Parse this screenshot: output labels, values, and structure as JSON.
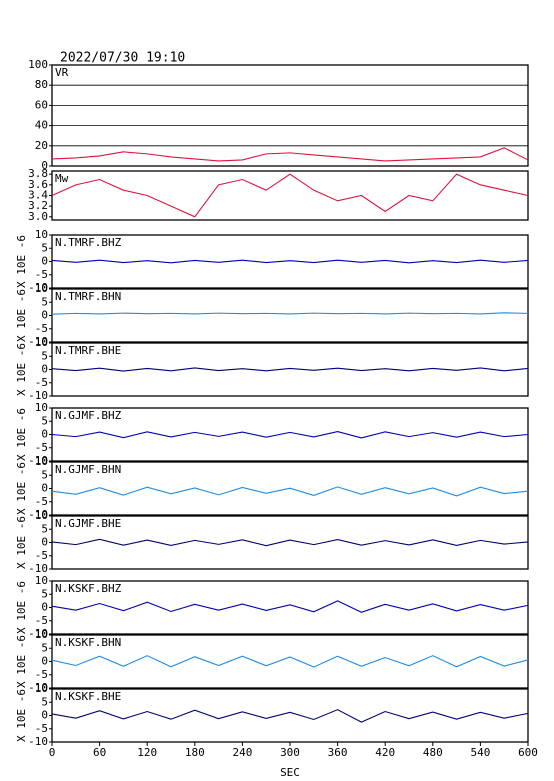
{
  "title": "2022/07/30 19:10",
  "chart_data": [
    {
      "type": "line",
      "label": "VR",
      "ylim": [
        0,
        100
      ],
      "yticks": [
        0,
        20,
        40,
        60,
        80,
        100
      ],
      "grid": true,
      "xlim": [
        0,
        600
      ],
      "x": [
        0,
        30,
        60,
        90,
        120,
        150,
        180,
        210,
        240,
        270,
        300,
        330,
        360,
        390,
        420,
        450,
        480,
        510,
        540,
        570,
        600
      ],
      "series": [
        {
          "color": "#dc143c",
          "values": [
            7,
            8,
            10,
            14,
            12,
            9,
            7,
            5,
            6,
            12,
            13,
            11,
            9,
            7,
            5,
            6,
            7,
            8,
            9,
            18,
            6
          ]
        }
      ]
    },
    {
      "type": "line",
      "label": "Mw",
      "ylim": [
        2.94,
        3.86
      ],
      "yticks": [
        {
          "value": 3,
          "label": "3.0"
        },
        3.2,
        3.4,
        3.6,
        3.8
      ],
      "grid": false,
      "xlim": [
        0,
        600
      ],
      "x": [
        0,
        30,
        60,
        90,
        120,
        150,
        180,
        210,
        240,
        270,
        300,
        330,
        360,
        390,
        420,
        450,
        480,
        510,
        540,
        570,
        600
      ],
      "series": [
        {
          "color": "#dc143c",
          "values": [
            3.4,
            3.6,
            3.7,
            3.5,
            3.4,
            3.2,
            3.0,
            3.6,
            3.7,
            3.5,
            3.8,
            3.5,
            3.3,
            3.4,
            3.1,
            3.4,
            3.3,
            3.8,
            3.6,
            3.5,
            3.4
          ]
        }
      ]
    },
    {
      "type": "line",
      "label": "N.TMRF.BHZ",
      "y_label": "X 10E -6",
      "ylim": [
        -10,
        10
      ],
      "yticks": [
        -10,
        -5,
        0,
        5,
        10
      ],
      "xlim": [
        0,
        600
      ],
      "x": [
        0,
        30,
        60,
        90,
        120,
        150,
        180,
        210,
        240,
        270,
        300,
        330,
        360,
        390,
        420,
        450,
        480,
        510,
        540,
        570,
        600
      ],
      "series": [
        {
          "color": "#0000b0",
          "values": [
            0.4,
            -0.3,
            0.5,
            -0.4,
            0.3,
            -0.5,
            0.4,
            -0.3,
            0.5,
            -0.4,
            0.3,
            -0.4,
            0.5,
            -0.3,
            0.4,
            -0.5,
            0.3,
            -0.4,
            0.5,
            -0.3,
            0.4
          ]
        }
      ]
    },
    {
      "type": "line",
      "label": "N.TMRF.BHN",
      "y_label": "X 10E -6",
      "ylim": [
        -10,
        10
      ],
      "yticks": [
        -10,
        -5,
        0,
        5,
        10
      ],
      "xlim": [
        0,
        600
      ],
      "x": [
        0,
        30,
        60,
        90,
        120,
        150,
        180,
        210,
        240,
        270,
        300,
        330,
        360,
        390,
        420,
        450,
        480,
        510,
        540,
        570,
        600
      ],
      "series": [
        {
          "color": "#1e8ce0",
          "values": [
            0.5,
            0.8,
            0.6,
            0.9,
            0.7,
            0.8,
            0.6,
            0.9,
            0.7,
            0.8,
            0.6,
            0.9,
            0.7,
            0.8,
            0.6,
            0.9,
            0.7,
            0.8,
            0.6,
            1.0,
            0.8
          ]
        }
      ]
    },
    {
      "type": "line",
      "label": "N.TMRF.BHE",
      "y_label": "X 10E -6",
      "ylim": [
        -10,
        10
      ],
      "yticks": [
        -10,
        -5,
        0,
        5,
        10
      ],
      "xlim": [
        0,
        600
      ],
      "x": [
        0,
        30,
        60,
        90,
        120,
        150,
        180,
        210,
        240,
        270,
        300,
        330,
        360,
        390,
        420,
        450,
        480,
        510,
        540,
        570,
        600
      ],
      "series": [
        {
          "color": "#000070",
          "values": [
            0.3,
            -0.4,
            0.5,
            -0.6,
            0.4,
            -0.5,
            0.6,
            -0.4,
            0.3,
            -0.5,
            0.4,
            -0.3,
            0.5,
            -0.4,
            0.3,
            -0.5,
            0.4,
            -0.3,
            0.6,
            -0.5,
            0.4
          ]
        }
      ]
    },
    {
      "type": "line",
      "label": "N.GJMF.BHZ",
      "y_label": "X 10E -6",
      "ylim": [
        -10,
        10
      ],
      "yticks": [
        -10,
        -5,
        0,
        5,
        10
      ],
      "xlim": [
        0,
        600
      ],
      "x": [
        0,
        30,
        60,
        90,
        120,
        150,
        180,
        210,
        240,
        270,
        300,
        330,
        360,
        390,
        420,
        450,
        480,
        510,
        540,
        570,
        600
      ],
      "series": [
        {
          "color": "#0000b0",
          "values": [
            0,
            -0.8,
            0.9,
            -1.2,
            1.0,
            -0.9,
            0.8,
            -0.7,
            0.9,
            -1.0,
            0.8,
            -0.9,
            1.1,
            -1.3,
            1.0,
            -0.8,
            0.7,
            -1.0,
            0.9,
            -0.8,
            0
          ]
        }
      ]
    },
    {
      "type": "line",
      "label": "N.GJMF.BHN",
      "y_label": "X 10E -6",
      "ylim": [
        -10,
        10
      ],
      "yticks": [
        -10,
        -5,
        0,
        5,
        10
      ],
      "xlim": [
        0,
        600
      ],
      "x": [
        0,
        30,
        60,
        90,
        120,
        150,
        180,
        210,
        240,
        270,
        300,
        330,
        360,
        390,
        420,
        450,
        480,
        510,
        540,
        570,
        600
      ],
      "series": [
        {
          "color": "#1e8ce0",
          "values": [
            -1,
            -2.2,
            0.3,
            -2.5,
            0.5,
            -2.0,
            0.2,
            -2.4,
            0.4,
            -1.8,
            0.1,
            -2.6,
            0.6,
            -2.2,
            0.3,
            -2.0,
            0.2,
            -2.8,
            0.5,
            -1.9,
            -1
          ]
        }
      ]
    },
    {
      "type": "line",
      "label": "N.GJMF.BHE",
      "y_label": "X 10E -6",
      "ylim": [
        -10,
        10
      ],
      "yticks": [
        -10,
        -5,
        0,
        5,
        10
      ],
      "xlim": [
        0,
        600
      ],
      "x": [
        0,
        30,
        60,
        90,
        120,
        150,
        180,
        210,
        240,
        270,
        300,
        330,
        360,
        390,
        420,
        450,
        480,
        510,
        540,
        570,
        600
      ],
      "series": [
        {
          "color": "#000070",
          "values": [
            0.2,
            -0.8,
            1.2,
            -1.0,
            0.9,
            -1.1,
            0.8,
            -0.7,
            1.0,
            -1.2,
            0.9,
            -0.8,
            1.1,
            -1.0,
            0.7,
            -0.9,
            1.0,
            -1.1,
            0.8,
            -0.6,
            0.2
          ]
        }
      ]
    },
    {
      "type": "line",
      "label": "N.KSKF.BHZ",
      "y_label": "X 10E -6",
      "ylim": [
        -10,
        10
      ],
      "yticks": [
        -10,
        -5,
        0,
        5,
        10
      ],
      "xlim": [
        0,
        600
      ],
      "x": [
        0,
        30,
        60,
        90,
        120,
        150,
        180,
        210,
        240,
        270,
        300,
        330,
        360,
        390,
        420,
        450,
        480,
        510,
        540,
        570,
        600
      ],
      "series": [
        {
          "color": "#0000b0",
          "values": [
            0.5,
            -1.0,
            1.5,
            -1.2,
            2.0,
            -1.5,
            1.2,
            -1.0,
            1.3,
            -1.1,
            1.0,
            -1.6,
            2.5,
            -1.8,
            1.2,
            -1.0,
            1.4,
            -1.3,
            1.1,
            -1.0,
            0.8
          ]
        }
      ]
    },
    {
      "type": "line",
      "label": "N.KSKF.BHN",
      "y_label": "X 10E -6",
      "ylim": [
        -10,
        10
      ],
      "yticks": [
        -10,
        -5,
        0,
        5,
        10
      ],
      "xlim": [
        0,
        600
      ],
      "x": [
        0,
        30,
        60,
        90,
        120,
        150,
        180,
        210,
        240,
        270,
        300,
        330,
        360,
        390,
        420,
        450,
        480,
        510,
        540,
        570,
        600
      ],
      "series": [
        {
          "color": "#1e8ce0",
          "values": [
            0.5,
            -1.5,
            2.0,
            -1.8,
            2.2,
            -2.0,
            1.8,
            -1.5,
            2.0,
            -1.6,
            1.7,
            -2.1,
            2.0,
            -1.8,
            1.5,
            -1.6,
            2.2,
            -2.0,
            1.9,
            -1.7,
            0.6
          ]
        }
      ]
    },
    {
      "type": "line",
      "label": "N.KSKF.BHE",
      "y_label": "X 10E -6",
      "ylim": [
        -10,
        10
      ],
      "yticks": [
        -10,
        -5,
        0,
        5,
        10
      ],
      "xlim": [
        0,
        600
      ],
      "xticks": [
        0,
        60,
        120,
        180,
        240,
        300,
        360,
        420,
        480,
        540,
        600
      ],
      "x_label": "SEC",
      "x": [
        0,
        30,
        60,
        90,
        120,
        150,
        180,
        210,
        240,
        270,
        300,
        330,
        360,
        390,
        420,
        450,
        480,
        510,
        540,
        570,
        600
      ],
      "series": [
        {
          "color": "#000070",
          "values": [
            0.6,
            -1.0,
            1.8,
            -1.3,
            1.5,
            -1.4,
            2.0,
            -1.2,
            1.4,
            -1.1,
            1.2,
            -1.5,
            2.2,
            -2.5,
            1.5,
            -1.2,
            1.3,
            -1.4,
            1.2,
            -1.0,
            0.8
          ]
        }
      ]
    }
  ]
}
